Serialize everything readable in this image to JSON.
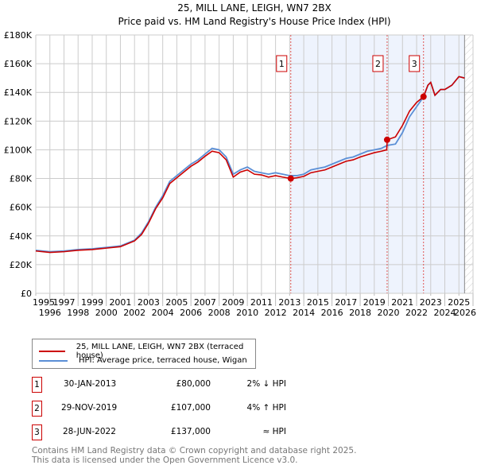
{
  "chart_data": {
    "type": "line",
    "title": "25, MILL LANE, LEIGH, WN7 2BX",
    "subtitle": "Price paid vs. HM Land Registry's House Price Index (HPI)",
    "xlim": [
      1995,
      2026
    ],
    "ylim": [
      0,
      180000
    ],
    "x_ticks": [
      "1995",
      "1996",
      "1997",
      "1998",
      "1999",
      "2000",
      "2001",
      "2002",
      "2003",
      "2004",
      "2005",
      "2006",
      "2007",
      "2008",
      "2009",
      "2010",
      "2011",
      "2012",
      "2013",
      "2014",
      "2015",
      "2016",
      "2017",
      "2018",
      "2019",
      "2020",
      "2021",
      "2022",
      "2023",
      "2024",
      "2025",
      "2026"
    ],
    "y_ticks": [
      {
        "v": 0,
        "l": "£0"
      },
      {
        "v": 20000,
        "l": "£20K"
      },
      {
        "v": 40000,
        "l": "£40K"
      },
      {
        "v": 60000,
        "l": "£60K"
      },
      {
        "v": 80000,
        "l": "£80K"
      },
      {
        "v": 100000,
        "l": "£100K"
      },
      {
        "v": 120000,
        "l": "£120K"
      },
      {
        "v": 140000,
        "l": "£140K"
      },
      {
        "v": 160000,
        "l": "£160K"
      },
      {
        "v": 180000,
        "l": "£180K"
      }
    ],
    "grid": true,
    "series": [
      {
        "name": "HPI: Average price, terraced house, Wigan",
        "color": "#5b8fd6",
        "x": [
          1995,
          1996,
          1997,
          1998,
          1999,
          2000,
          2001,
          2002,
          2002.5,
          2003,
          2003.5,
          2004,
          2004.5,
          2005,
          2005.5,
          2006,
          2006.5,
          2007,
          2007.5,
          2008,
          2008.5,
          2009,
          2009.5,
          2010,
          2010.5,
          2011,
          2011.5,
          2012,
          2012.5,
          2013,
          2013.5,
          2014,
          2014.5,
          2015,
          2015.5,
          2016,
          2016.5,
          2017,
          2017.5,
          2018,
          2018.5,
          2019,
          2019.5,
          2019.9,
          2020.5,
          2021,
          2021.5,
          2022,
          2022.5,
          2022.8,
          2023,
          2023.3,
          2023.7,
          2024,
          2024.5,
          2025,
          2025.4
        ],
        "y": [
          30000,
          29000,
          29500,
          30500,
          31000,
          32000,
          33000,
          37000,
          42000,
          50000,
          60000,
          68000,
          78000,
          82000,
          86000,
          90000,
          93000,
          97000,
          101000,
          100000,
          95000,
          83000,
          86000,
          88000,
          85000,
          84000,
          83000,
          84000,
          83000,
          82000,
          82000,
          83000,
          86000,
          87000,
          88000,
          90000,
          92000,
          94000,
          95000,
          97000,
          99000,
          100000,
          101000,
          103000,
          104000,
          112000,
          123000,
          130000,
          137000,
          145000,
          147000,
          138000,
          142000,
          142000,
          145000,
          151000,
          150000
        ]
      },
      {
        "name": "25, MILL LANE, LEIGH, WN7 2BX (terraced house)",
        "color": "#cc0000",
        "x": [
          1995,
          1996,
          1997,
          1998,
          1999,
          2000,
          2001,
          2002,
          2002.5,
          2003,
          2003.5,
          2004,
          2004.5,
          2005,
          2005.5,
          2006,
          2006.5,
          2007,
          2007.5,
          2008,
          2008.5,
          2009,
          2009.5,
          2010,
          2010.5,
          2011,
          2011.5,
          2012,
          2012.5,
          2013.08,
          2013.5,
          2014,
          2014.5,
          2015,
          2015.5,
          2016,
          2016.5,
          2017,
          2017.5,
          2018,
          2018.5,
          2019,
          2019.5,
          2019.88,
          2019.92,
          2020.5,
          2021,
          2021.5,
          2022,
          2022.49,
          2022.8,
          2023,
          2023.3,
          2023.7,
          2024,
          2024.5,
          2025,
          2025.4
        ],
        "y": [
          29500,
          28500,
          29000,
          30000,
          30500,
          31500,
          32500,
          36500,
          41000,
          49000,
          59000,
          66500,
          76500,
          80500,
          84500,
          88500,
          91500,
          95500,
          99000,
          98000,
          93000,
          81000,
          84500,
          86000,
          83000,
          82500,
          81000,
          82000,
          81000,
          80000,
          80500,
          81500,
          84000,
          85000,
          86000,
          88000,
          90000,
          92000,
          93000,
          95000,
          96500,
          98000,
          99000,
          100000,
          107000,
          109000,
          117000,
          127000,
          133000,
          137000,
          145000,
          147000,
          138000,
          142000,
          142000,
          145000,
          151000,
          150000
        ]
      }
    ],
    "sales": [
      {
        "label": "1",
        "date": "30-JAN-2013",
        "x": 2013.08,
        "price": 80000,
        "price_text": "£80,000",
        "hpi": "2% ↓ HPI"
      },
      {
        "label": "2",
        "date": "29-NOV-2019",
        "x": 2019.91,
        "price": 107000,
        "price_text": "£107,000",
        "hpi": "4% ↑ HPI"
      },
      {
        "label": "3",
        "date": "28-JUN-2022",
        "x": 2022.49,
        "price": 137000,
        "price_text": "£137,000",
        "hpi": "≈ HPI"
      }
    ],
    "shaded_range": [
      2013.08,
      2025.4
    ],
    "hatched_from": 2025.4,
    "legend_position": "below"
  },
  "footer": {
    "line1": "Contains HM Land Registry data © Crown copyright and database right 2025.",
    "line2": "This data is licensed under the Open Government Licence v3.0."
  }
}
